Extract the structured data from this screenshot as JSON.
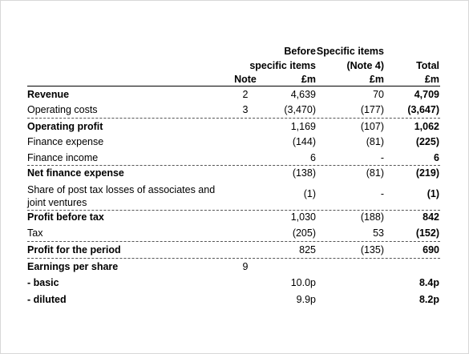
{
  "header": {
    "note": "Note",
    "before": [
      "Before",
      "specific items",
      "£m"
    ],
    "specific": [
      "Specific items",
      "(Note 4)",
      "£m"
    ],
    "total": [
      "Total",
      "£m"
    ]
  },
  "rows": [
    {
      "label": "Revenue",
      "note": "2",
      "before": "4,639",
      "specific": "70",
      "total": "4,709"
    },
    {
      "label": "Operating costs",
      "note": "3",
      "before": "(3,470)",
      "specific": "(177)",
      "total": "(3,647)"
    },
    {
      "label": "Operating profit",
      "before": "1,169",
      "specific": "(107)",
      "total": "1,062"
    },
    {
      "label": "Finance expense",
      "before": "(144)",
      "specific": "(81)",
      "total": "(225)"
    },
    {
      "label": "Finance income",
      "before": "6",
      "specific": "-",
      "total": "6"
    },
    {
      "label": "Net finance expense",
      "before": "(138)",
      "specific": "(81)",
      "total": "(219)"
    },
    {
      "label": "Share of post tax losses of associates and joint ventures",
      "before": "(1)",
      "specific": "-",
      "total": "(1)"
    },
    {
      "label": "Profit before tax",
      "before": "1,030",
      "specific": "(188)",
      "total": "842"
    },
    {
      "label": "Tax",
      "before": "(205)",
      "specific": "53",
      "total": "(152)"
    },
    {
      "label": "Profit for the period",
      "before": "825",
      "specific": "(135)",
      "total": "690"
    },
    {
      "label": "Earnings per share",
      "note": "9"
    },
    {
      "label": "- basic",
      "before": "10.0p",
      "total": "8.4p"
    },
    {
      "label": "- diluted",
      "before": "9.9p",
      "total": "8.2p"
    }
  ]
}
